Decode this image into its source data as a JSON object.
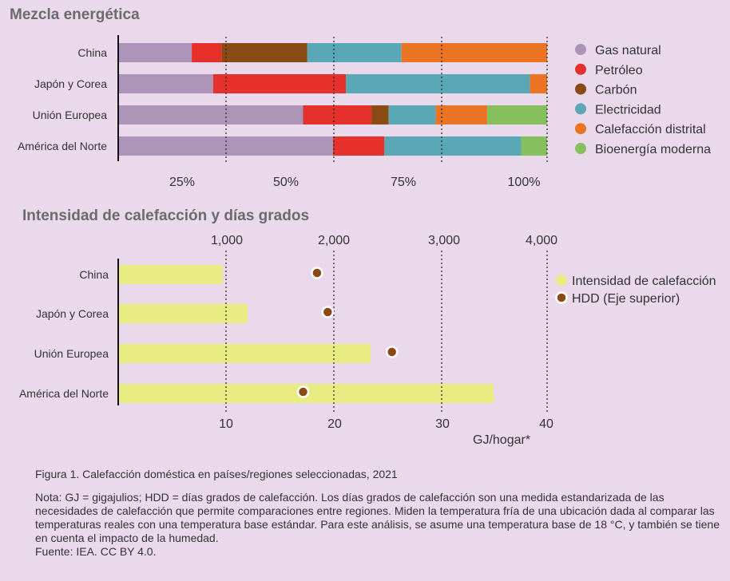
{
  "chart_data": [
    {
      "type": "bar",
      "orientation": "horizontal",
      "stacked": true,
      "title": "Mezcla energética",
      "categories": [
        "China",
        "Japón y Corea",
        "Unión Europea",
        "América del Norte"
      ],
      "series": [
        {
          "name": "Gas natural",
          "color": "#ae93b8",
          "values": [
            17,
            22,
            43,
            50
          ]
        },
        {
          "name": "Petróleo",
          "color": "#e6302c",
          "values": [
            7,
            31,
            16,
            12
          ]
        },
        {
          "name": "Carbón",
          "color": "#8a4a16",
          "values": [
            20,
            0,
            4,
            0
          ]
        },
        {
          "name": "Electricidad",
          "color": "#5aa7b6",
          "values": [
            22,
            43,
            11,
            32
          ]
        },
        {
          "name": "Calefacción distrital",
          "color": "#ea7423",
          "values": [
            34,
            4,
            12,
            0
          ]
        },
        {
          "name": "Bioenergía moderna",
          "color": "#86bf5e",
          "values": [
            0,
            0,
            14,
            6
          ]
        }
      ],
      "x_tick_labels": [
        "25%",
        "50%",
        "75%",
        "100%"
      ],
      "xlim": [
        0,
        100
      ],
      "legend": "right"
    },
    {
      "type": "bar",
      "orientation": "horizontal",
      "title": "Intensidad de calefacción y días grados",
      "categories": [
        "China",
        "Japón y Corea",
        "Unión Europea",
        "América del Norte"
      ],
      "series": [
        {
          "name": "Intensidad de calefacción",
          "type": "bar",
          "color": "#e8ec82",
          "axis": "bottom",
          "values": [
            9.7,
            12,
            23.5,
            35
          ]
        },
        {
          "name": "HDD (Eje superior)",
          "type": "scatter",
          "color": "#8a4a16",
          "axis": "top",
          "values": [
            1850,
            1950,
            2550,
            1720
          ]
        }
      ],
      "x_bottom": {
        "label": "GJ/hogar*",
        "ticks": [
          10,
          20,
          30,
          40
        ],
        "range": [
          0,
          40
        ]
      },
      "x_top": {
        "ticks": [
          "1,000",
          "2,000",
          "3,000",
          "4,000"
        ],
        "range": [
          0,
          4000
        ]
      },
      "legend": "right"
    }
  ],
  "caption": "Figura 1. Calefacción doméstica en países/regiones seleccionadas, 2021",
  "note": "Nota: GJ = gigajulios; HDD = días grados de calefacción. Los días grados de calefacción son una medida estandarizada de las necesidades de calefacción que permite comparaciones entre regiones. Miden la temperatura fría de una ubicación dada al comparar las temperaturas reales con una temperatura base estándar. Para este análisis, se asume una temperatura base de 18 °C, y también se tiene en cuenta el impacto de la humedad.",
  "source": "Fuente: IEA. CC BY 4.0."
}
